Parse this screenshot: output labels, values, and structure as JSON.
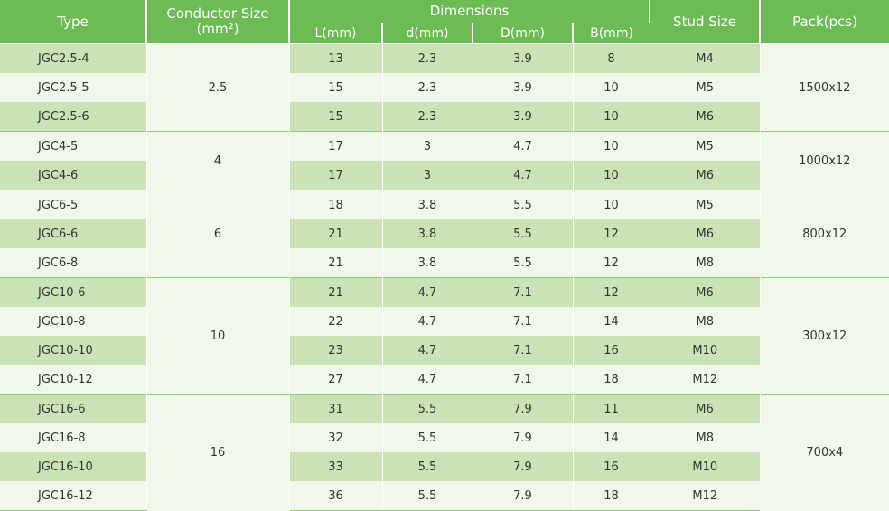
{
  "headers": {
    "type": "Type",
    "conductor": "Conductor Size",
    "conductor_unit": "(mm²)",
    "dimensions": "Dimensions",
    "stud": "Stud Size",
    "pack": "Pack(pcs)",
    "sub": [
      "L(mm)",
      "d(mm)",
      "D(mm)",
      "B(mm)"
    ]
  },
  "groups": [
    {
      "conductor": "2.5",
      "pack": "1500x12",
      "rows": [
        {
          "type": "JGC2.5-4",
          "L": "13",
          "d": "2.3",
          "D": "3.9",
          "B": "8",
          "stud": "M4"
        },
        {
          "type": "JGC2.5-5",
          "L": "15",
          "d": "2.3",
          "D": "3.9",
          "B": "10",
          "stud": "M5"
        },
        {
          "type": "JGC2.5-6",
          "L": "15",
          "d": "2.3",
          "D": "3.9",
          "B": "10",
          "stud": "M6"
        }
      ]
    },
    {
      "conductor": "4",
      "pack": "1000x12",
      "rows": [
        {
          "type": "JGC4-5",
          "L": "17",
          "d": "3",
          "D": "4.7",
          "B": "10",
          "stud": "M5"
        },
        {
          "type": "JGC4-6",
          "L": "17",
          "d": "3",
          "D": "4.7",
          "B": "10",
          "stud": "M6"
        }
      ]
    },
    {
      "conductor": "6",
      "pack": "800x12",
      "rows": [
        {
          "type": "JGC6-5",
          "L": "18",
          "d": "3.8",
          "D": "5.5",
          "B": "10",
          "stud": "M5"
        },
        {
          "type": "JGC6-6",
          "L": "21",
          "d": "3.8",
          "D": "5.5",
          "B": "12",
          "stud": "M6"
        },
        {
          "type": "JGC6-8",
          "L": "21",
          "d": "3.8",
          "D": "5.5",
          "B": "12",
          "stud": "M8"
        }
      ]
    },
    {
      "conductor": "10",
      "pack": "300x12",
      "rows": [
        {
          "type": "JGC10-6",
          "L": "21",
          "d": "4.7",
          "D": "7.1",
          "B": "12",
          "stud": "M6"
        },
        {
          "type": "JGC10-8",
          "L": "22",
          "d": "4.7",
          "D": "7.1",
          "B": "14",
          "stud": "M8"
        },
        {
          "type": "JGC10-10",
          "L": "23",
          "d": "4.7",
          "D": "7.1",
          "B": "16",
          "stud": "M10"
        },
        {
          "type": "JGC10-12",
          "L": "27",
          "d": "4.7",
          "D": "7.1",
          "B": "18",
          "stud": "M12"
        }
      ]
    },
    {
      "conductor": "16",
      "pack": "700x4",
      "rows": [
        {
          "type": "JGC16-6",
          "L": "31",
          "d": "5.5",
          "D": "7.9",
          "B": "11",
          "stud": "M6"
        },
        {
          "type": "JGC16-8",
          "L": "32",
          "d": "5.5",
          "D": "7.9",
          "B": "14",
          "stud": "M8"
        },
        {
          "type": "JGC16-10",
          "L": "33",
          "d": "5.5",
          "D": "7.9",
          "B": "16",
          "stud": "M10"
        },
        {
          "type": "JGC16-12",
          "L": "36",
          "d": "5.5",
          "D": "7.9",
          "B": "18",
          "stud": "M12"
        }
      ]
    }
  ]
}
